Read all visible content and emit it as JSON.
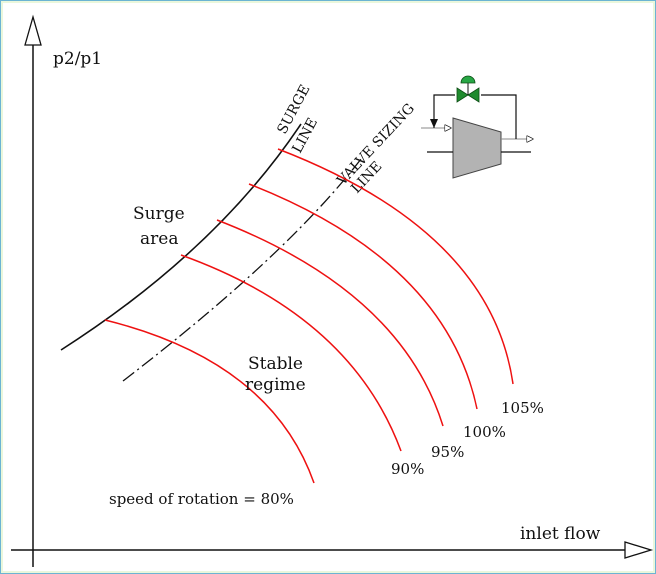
{
  "axes": {
    "y_label": "p2/p1",
    "x_label": "inlet flow"
  },
  "lines": {
    "surge_line": [
      "SURGE",
      "LINE"
    ],
    "valve_sizing_line": [
      "VALVE SIZING",
      "LINE"
    ]
  },
  "regions": {
    "surge_area": [
      "Surge",
      "area"
    ],
    "stable_regime": [
      "Stable",
      "regime"
    ]
  },
  "speed_curves": [
    {
      "label": "speed of rotation = 80%"
    },
    {
      "label": "90%"
    },
    {
      "label": "95%"
    },
    {
      "label": "100%"
    },
    {
      "label": "105%"
    }
  ],
  "colors": {
    "speed_curve": "#ee1111",
    "surge_line": "#111111",
    "valve_sizing_line": "#111111",
    "compressor_body": "#b3b3b3",
    "valve": "#1f8a2e",
    "actuator": "#28a745",
    "frame_border": "#6bb4d3"
  },
  "inset": {
    "icon": "compressor-with-recycle-valve-icon"
  }
}
